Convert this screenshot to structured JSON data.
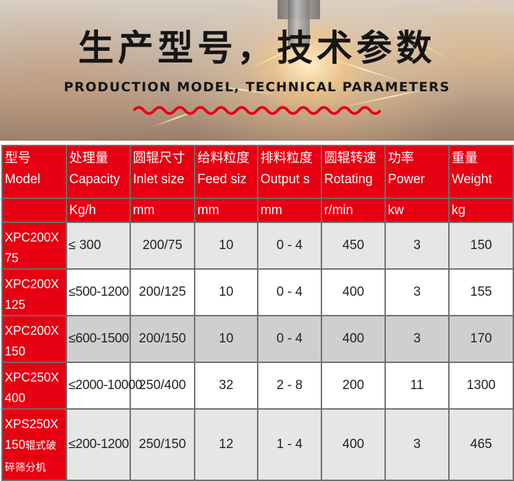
{
  "banner": {
    "title_cn": "生产型号，技术参数",
    "title_en": "PRODUCTION MODEL, TECHNICAL PARAMETERS"
  },
  "table": {
    "header_cn": [
      "型号",
      "处理量",
      "圆辊尺寸",
      "给料粒度",
      "排料粒度",
      "圆辊转速",
      "功率",
      "重量"
    ],
    "header_en": [
      "Model",
      "Capacity",
      "Inlet size",
      "Feed siz",
      "Output s",
      "Rotating",
      "Power",
      "Weight"
    ],
    "units": [
      "",
      "Kg/h",
      "mm",
      "mm",
      "mm",
      "r/min",
      "kw",
      "kg"
    ],
    "rows": [
      {
        "model_line1": "XPC200X",
        "model_line2": "75",
        "model_extra": "",
        "capacity": "≤ 300",
        "inlet": "200/75",
        "feed": "10",
        "output": "0 - 4",
        "rotating": "450",
        "power": "3",
        "weight": "150"
      },
      {
        "model_line1": "XPC200X",
        "model_line2": "125",
        "model_extra": "",
        "capacity": "≤500-1200",
        "inlet": "200/125",
        "feed": "10",
        "output": "0 - 4",
        "rotating": "400",
        "power": "3",
        "weight": "155"
      },
      {
        "model_line1": "XPC200X",
        "model_line2": "150",
        "model_extra": "",
        "capacity": "≤600-1500",
        "inlet": "200/150",
        "feed": "10",
        "output": "0 - 4",
        "rotating": "400",
        "power": "3",
        "weight": "170"
      },
      {
        "model_line1": "XPC250X",
        "model_line2": "400",
        "model_extra": "",
        "capacity": "≤2000-10000",
        "inlet": "250/400",
        "feed": "32",
        "output": "2 - 8",
        "rotating": "200",
        "power": "11",
        "weight": "1300"
      },
      {
        "model_line1": "XPS250X",
        "model_line2": "150",
        "model_extra": "辊式破碎筛分机",
        "capacity": "≤200-1200",
        "inlet": "250/150",
        "feed": "12",
        "output": "1 - 4",
        "rotating": "400",
        "power": "3",
        "weight": "465"
      }
    ]
  },
  "colors": {
    "header_red": "#e60012",
    "border": "#6e6e6e",
    "row_light": "#e6e6e6",
    "row_white": "#ffffff",
    "row_gray": "#cfcfcf"
  }
}
